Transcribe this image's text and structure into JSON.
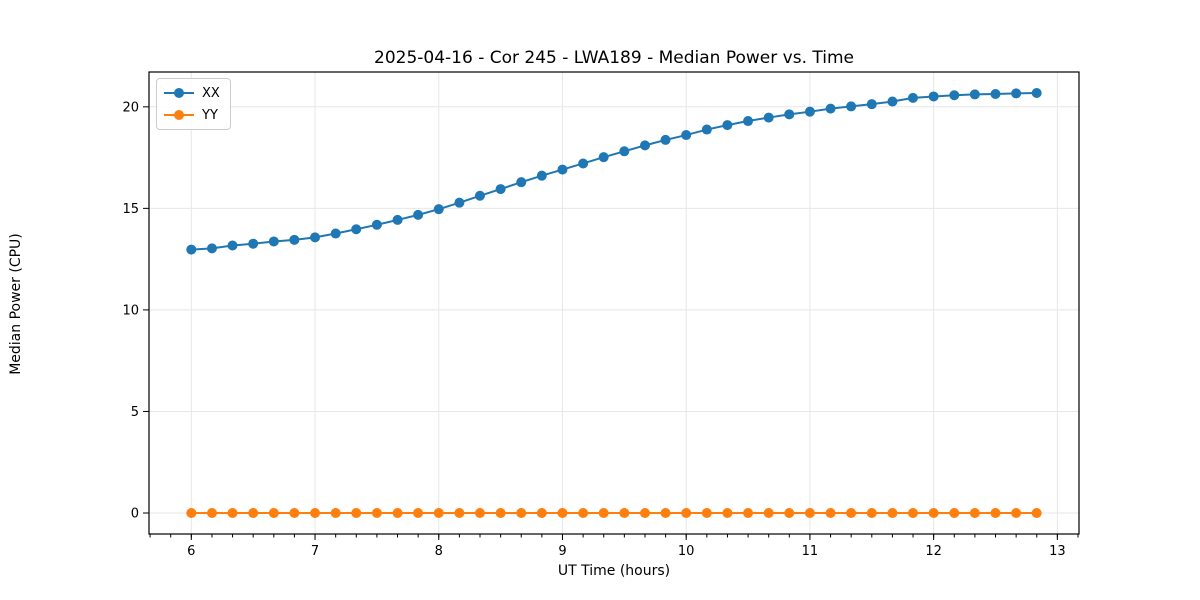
{
  "chart_data": {
    "type": "line",
    "title": "2025-04-16 - Cor 245 - LWA189 - Median Power vs. Time",
    "xlabel": "UT Time (hours)",
    "ylabel": "Median Power (CPU)",
    "xlim": [
      5.658,
      13.175
    ],
    "ylim": [
      -1.034,
      21.714
    ],
    "xticks": [
      6,
      7,
      8,
      9,
      10,
      11,
      12,
      13
    ],
    "yticks": [
      0,
      5,
      10,
      15,
      20
    ],
    "x_minor_tick_step_hours": 0.16667,
    "grid": true,
    "legend_position": "upper-left",
    "background_color": "#ffffff",
    "grid_color": "#e7e7e7",
    "spine_color": "#000000",
    "x": [
      6.0,
      6.167,
      6.333,
      6.5,
      6.667,
      6.833,
      7.0,
      7.167,
      7.333,
      7.5,
      7.667,
      7.833,
      8.0,
      8.167,
      8.333,
      8.5,
      8.667,
      8.833,
      9.0,
      9.167,
      9.333,
      9.5,
      9.667,
      9.833,
      10.0,
      10.167,
      10.333,
      10.5,
      10.667,
      10.833,
      11.0,
      11.167,
      11.333,
      11.5,
      11.667,
      11.833,
      12.0,
      12.167,
      12.333,
      12.5,
      12.667,
      12.833
    ],
    "series": [
      {
        "name": "XX",
        "color": "#1f77b4",
        "values": [
          12.97,
          13.03,
          13.17,
          13.26,
          13.37,
          13.45,
          13.57,
          13.76,
          13.97,
          14.19,
          14.43,
          14.68,
          14.96,
          15.28,
          15.62,
          15.95,
          16.29,
          16.61,
          16.91,
          17.21,
          17.52,
          17.81,
          18.1,
          18.37,
          18.61,
          18.88,
          19.1,
          19.3,
          19.47,
          19.63,
          19.76,
          19.91,
          20.02,
          20.13,
          20.26,
          20.44,
          20.51,
          20.57,
          20.61,
          20.63,
          20.66,
          20.68
        ]
      },
      {
        "name": "YY",
        "color": "#ff7f0e",
        "values": [
          0,
          0,
          0,
          0,
          0,
          0,
          0,
          0,
          0,
          0,
          0,
          0,
          0,
          0,
          0,
          0,
          0,
          0,
          0,
          0,
          0,
          0,
          0,
          0,
          0,
          0,
          0,
          0,
          0,
          0,
          0,
          0,
          0,
          0,
          0,
          0,
          0,
          0,
          0,
          0,
          0,
          0
        ]
      }
    ]
  }
}
